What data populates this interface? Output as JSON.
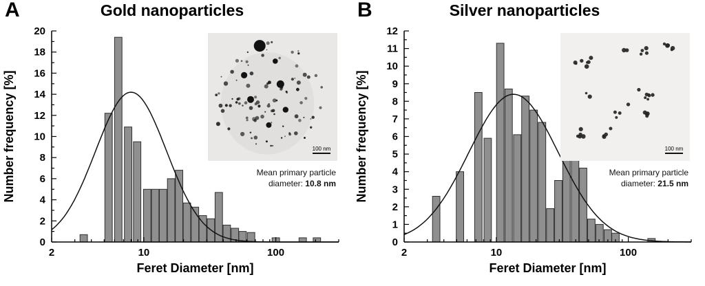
{
  "figure": {
    "panels": [
      {
        "label": "A",
        "title": "Gold nanoparticles",
        "inset": {
          "caption_line1": "Mean primary particle",
          "caption_line2_prefix": "diameter: ",
          "mean_diameter": "10.8 nm",
          "scalebar_label": "100 nm"
        }
      },
      {
        "label": "B",
        "title": "Silver nanoparticles",
        "inset": {
          "caption_line1": "Mean primary particle",
          "caption_line2_prefix": "diameter: ",
          "mean_diameter": "21.5 nm",
          "scalebar_label": "100 nm"
        }
      }
    ]
  },
  "colors": {
    "bar_fill": "#8f8f8f",
    "bar_edge": "#2f2f2f",
    "curve": "#111111",
    "axis": "#000000"
  },
  "chart_data": [
    {
      "type": "bar",
      "title": "Gold nanoparticles",
      "xlabel": "Feret Diameter [nm]",
      "ylabel": "Number frequency [%]",
      "x_scale": "log",
      "xlim": [
        2,
        300
      ],
      "ylim": [
        0,
        20
      ],
      "x_major_ticks": [
        2,
        10,
        100
      ],
      "y_major_step": 2,
      "y_minor_step": 1,
      "legend": "none",
      "grid": false,
      "bars": {
        "x_nm": [
          3.5,
          5.4,
          6.4,
          7.6,
          8.9,
          10.6,
          12.2,
          14,
          16.1,
          18.5,
          21.2,
          24.4,
          28,
          32.2,
          37,
          42.5,
          49,
          56,
          65,
          100,
          160,
          205
        ],
        "frequency_percent": [
          0.7,
          12.2,
          19.4,
          10.9,
          9.5,
          5.0,
          5.0,
          5.0,
          6.0,
          6.8,
          3.7,
          3.3,
          2.5,
          2.2,
          4.7,
          1.6,
          1.3,
          1.0,
          0.9,
          0.4,
          0.4,
          0.4
        ]
      },
      "fit_curve": {
        "shape": "lognormal",
        "amplitude_percent": 14.2,
        "center_nm": 8.0,
        "sigma_ln": 0.62
      },
      "mean_primary_particle_diameter_nm": 10.8
    },
    {
      "type": "bar",
      "title": "Silver nanoparticles",
      "xlabel": "Feret Diameter [nm]",
      "ylabel": "Number frequency [%]",
      "x_scale": "log",
      "xlim": [
        2,
        300
      ],
      "ylim": [
        0,
        12
      ],
      "x_major_ticks": [
        2,
        10,
        100
      ],
      "y_major_step": 1,
      "y_minor_step": 0.5,
      "legend": "none",
      "grid": false,
      "bars": {
        "x_nm": [
          3.5,
          5.3,
          7.3,
          8.6,
          10.7,
          12.4,
          14.4,
          16.6,
          19.2,
          22.2,
          25.6,
          29.5,
          34,
          39.5,
          45.5,
          52.5,
          60.5,
          70,
          80,
          150
        ],
        "frequency_percent": [
          2.6,
          4.0,
          8.5,
          5.9,
          11.3,
          8.7,
          6.1,
          8.3,
          7.5,
          6.8,
          1.9,
          3.5,
          5.5,
          4.7,
          4.2,
          1.3,
          1.0,
          0.7,
          0.5,
          0.2
        ]
      },
      "fit_curve": {
        "shape": "lognormal",
        "amplitude_percent": 8.4,
        "center_nm": 13.5,
        "sigma_ln": 0.78
      },
      "mean_primary_particle_diameter_nm": 21.5
    }
  ]
}
